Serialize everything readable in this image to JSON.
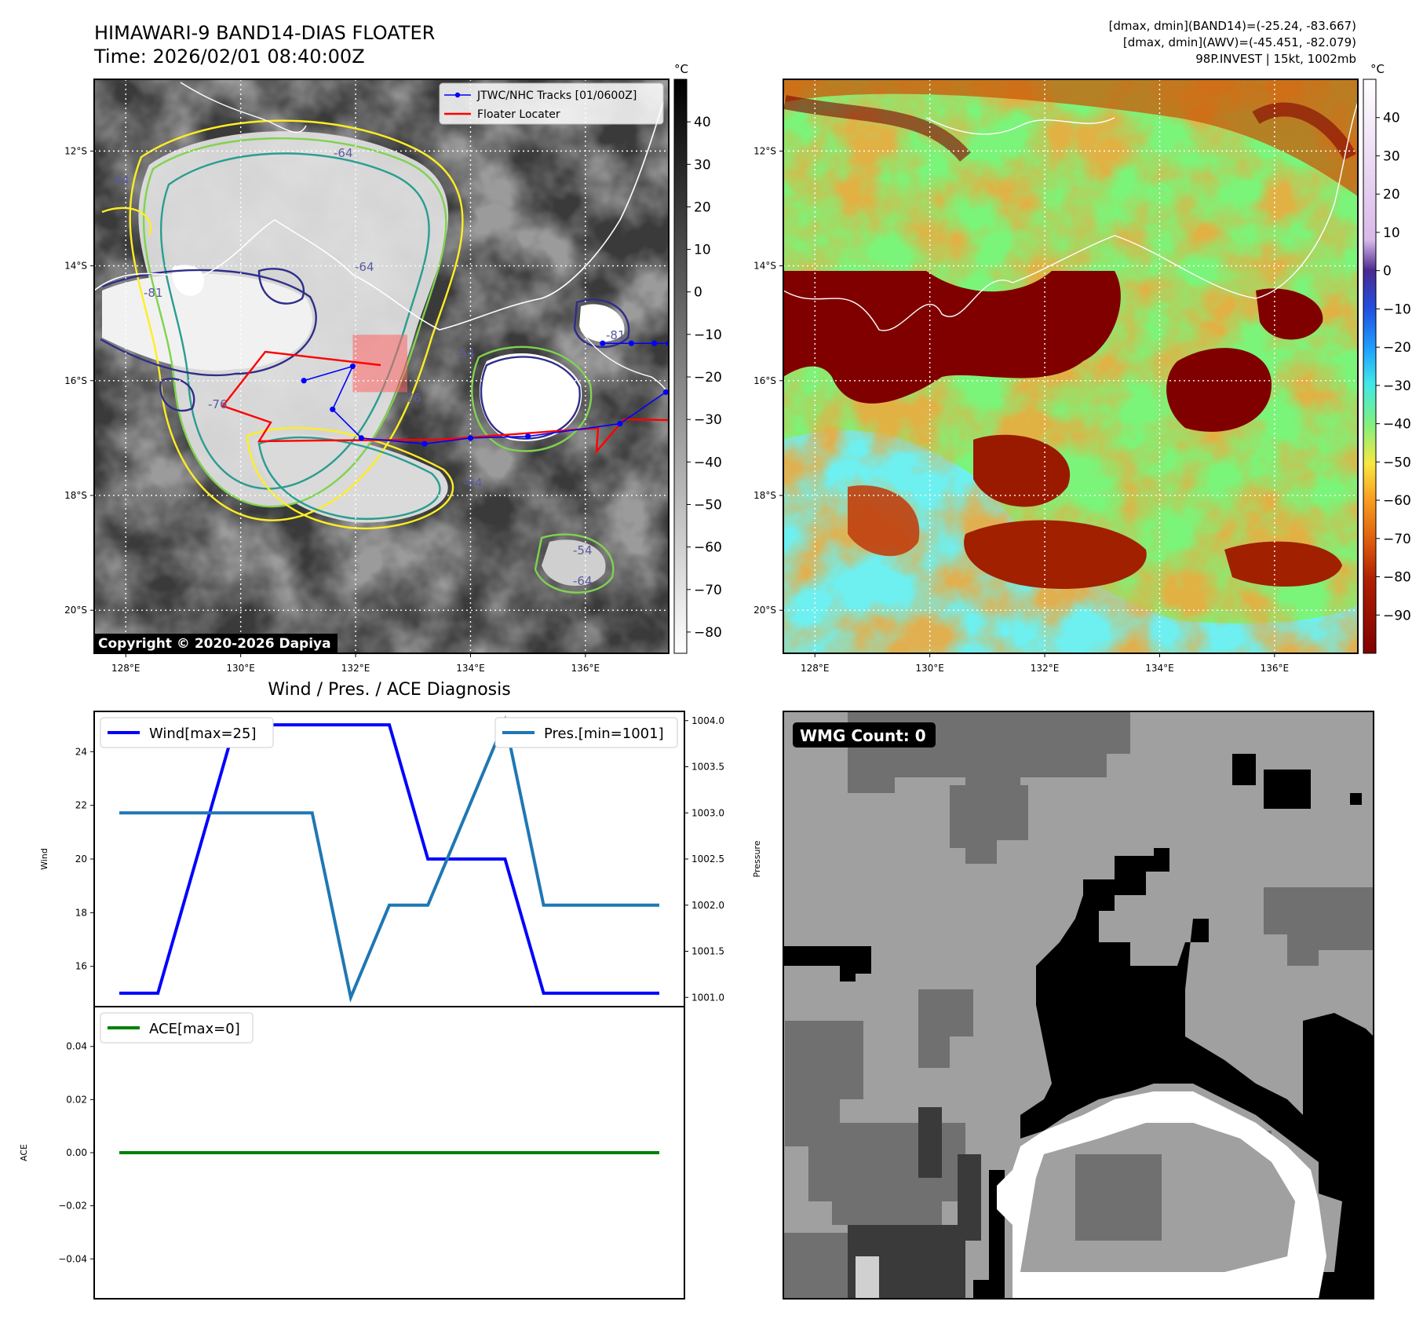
{
  "header": {
    "title_line1": "HIMAWARI-9 BAND14-DIAS FLOATER",
    "title_line2": "Time: 2026/02/01 08:40:00Z",
    "info_line1": "[dmax, dmin](BAND14)=(-25.24, -83.667)",
    "info_line2": "[dmax, dmin](AWV)=(-45.451, -82.079)",
    "info_line3": "98P.INVEST | 15kt, 1002mb"
  },
  "copyright": "Copyright © 2020-2026 Dapiya",
  "colors": {
    "wind": "#0000ff",
    "pressure": "#1f77b4",
    "ace": "#008000",
    "track": "#0000ff",
    "locater": "#ff0000",
    "contour_yellow": "#ffee22",
    "contour_green": "#7fd34e",
    "contour_teal": "#2a9d8f",
    "contour_navy": "#2f2e8a"
  },
  "map_axes": {
    "lon_ticks": [
      "128°E",
      "130°E",
      "132°E",
      "134°E",
      "136°E"
    ],
    "lat_ticks": [
      "12°S",
      "14°S",
      "16°S",
      "18°S",
      "20°S"
    ],
    "lon_range": [
      127.45,
      137.45
    ],
    "lat_range": [
      -20.75,
      -10.75
    ]
  },
  "ir_panel": {
    "legend_track": "JTWC/NHC Tracks [01/0600Z]",
    "legend_locater": "Floater Locater",
    "contour_labels": [
      "-64",
      "-54",
      "-81",
      "-76",
      "-64",
      "-54",
      "-64",
      "-81",
      "-64",
      "-76",
      "-54"
    ],
    "colorbar": {
      "unit": "°C",
      "ticks": [
        "40",
        "30",
        "20",
        "10",
        "0",
        "−10",
        "−20",
        "−30",
        "−40",
        "−50",
        "−60",
        "−70",
        "−80"
      ],
      "tick_values": [
        40,
        30,
        20,
        10,
        0,
        -10,
        -20,
        -30,
        -40,
        -50,
        -60,
        -70,
        -80
      ],
      "range": [
        -85,
        50
      ],
      "scale": "grayscale"
    },
    "track_points": [
      {
        "lon": 131.1,
        "lat": -16.0
      },
      {
        "lon": 131.95,
        "lat": -15.75
      },
      {
        "lon": 131.6,
        "lat": -16.5
      },
      {
        "lon": 132.1,
        "lat": -17.0
      },
      {
        "lon": 133.2,
        "lat": -17.1
      },
      {
        "lon": 134.0,
        "lat": -17.0
      },
      {
        "lon": 135.0,
        "lat": -16.97
      },
      {
        "lon": 136.6,
        "lat": -16.75
      },
      {
        "lon": 137.4,
        "lat": -16.2
      }
    ],
    "track_points_east": [
      {
        "lon": 136.3,
        "lat": -15.35
      },
      {
        "lon": 136.8,
        "lat": -15.35
      },
      {
        "lon": 137.2,
        "lat": -15.35
      },
      {
        "lon": 137.45,
        "lat": -15.35
      }
    ],
    "locater_box": {
      "lon": [
        131.95,
        132.9
      ],
      "lat": [
        -15.2,
        -16.2
      ]
    }
  },
  "awv_panel": {
    "colorbar": {
      "unit": "°C",
      "ticks": [
        "40",
        "30",
        "20",
        "10",
        "0",
        "−10",
        "−20",
        "−30",
        "−40",
        "−50",
        "−60",
        "−70",
        "−80",
        "−90"
      ],
      "tick_values": [
        40,
        30,
        20,
        10,
        0,
        -10,
        -20,
        -30,
        -40,
        -50,
        -60,
        -70,
        -80,
        -90
      ],
      "range": [
        -100,
        50
      ]
    }
  },
  "chart_data": [
    {
      "type": "line",
      "title": "Wind / Pres. / ACE Diagnosis",
      "ylabel": "Wind",
      "y2label": "Pressure",
      "x": [
        0,
        1,
        2,
        3,
        4,
        5,
        6,
        7,
        8,
        9,
        10,
        11,
        12,
        13,
        14
      ],
      "series": [
        {
          "name": "Wind[max=25]",
          "axis": "left",
          "values": [
            15,
            15,
            20,
            25,
            25,
            25,
            25,
            25,
            20,
            20,
            20,
            15,
            15,
            15,
            15
          ]
        },
        {
          "name": "Pres.[min=1001]",
          "axis": "right",
          "values": [
            1003,
            1003,
            1003,
            1003,
            1003,
            1003,
            1001,
            1002,
            1002,
            1003,
            1004,
            1002,
            1002,
            1002,
            1002
          ]
        }
      ],
      "ylim": [
        14.5,
        25.5
      ],
      "y2lim": [
        1000.9,
        1004.1
      ],
      "yticks": [
        "16",
        "18",
        "20",
        "22",
        "24"
      ],
      "y2ticks": [
        "1001.0",
        "1001.5",
        "1002.0",
        "1002.5",
        "1003.0",
        "1003.5",
        "1004.0"
      ]
    },
    {
      "type": "line",
      "ylabel": "ACE",
      "x": [
        0,
        14
      ],
      "series": [
        {
          "name": "ACE[max=0]",
          "values": [
            0,
            0
          ]
        }
      ],
      "ylim": [
        -0.055,
        0.055
      ],
      "yticks": [
        "0.04",
        "0.02",
        "0.00",
        "−0.02",
        "−0.04"
      ],
      "ytick_values": [
        0.04,
        0.02,
        0.0,
        -0.02,
        -0.04
      ]
    }
  ],
  "wmg_panel": {
    "label": "WMG Count: 0"
  }
}
